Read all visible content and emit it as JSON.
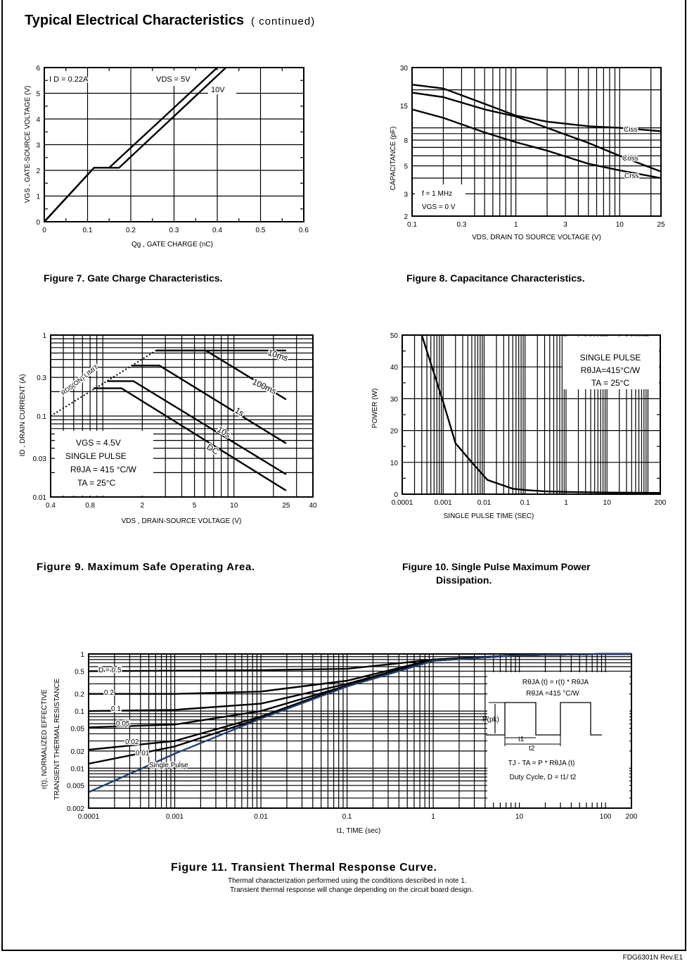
{
  "page": {
    "title": "Typical Electrical Characteristics",
    "title_suffix": "( continued)",
    "footer": "FDG6301N Rev.E1",
    "notes": [
      "Thermal characterization performed using the conditions described in note 1.",
      "Transient thermal response will change depending on the circuit board design."
    ]
  },
  "chart_data": [
    {
      "type": "line",
      "caption": "Figure 7. Gate Charge Characteristics.",
      "xlabel": "Qg , GATE CHARGE (nC)",
      "ylabel": "VGS , GATE-SOURCE VOLTAGE (V)",
      "xscale": "linear",
      "yscale": "linear",
      "xlim": [
        0,
        0.6
      ],
      "ylim": [
        0,
        6
      ],
      "xticks": [
        "0",
        "0.1",
        "0.2",
        "0.3",
        "0.4",
        "0.5",
        "0.6"
      ],
      "yticks": [
        "0",
        "1",
        "2",
        "3",
        "4",
        "5",
        "6"
      ],
      "grid": true,
      "annotations": [
        "I D = 0.22A",
        "VDS = 5V",
        "10V"
      ],
      "series": [
        {
          "name": "VDS = 5V",
          "x": [
            0,
            0.115,
            0.15,
            0.4
          ],
          "y": [
            0,
            2.1,
            2.1,
            6
          ]
        },
        {
          "name": "10V",
          "x": [
            0,
            0.115,
            0.173,
            0.42
          ],
          "y": [
            0,
            2.1,
            2.1,
            6
          ]
        }
      ]
    },
    {
      "type": "line",
      "caption": "Figure 8. Capacitance Characteristics.",
      "xlabel": "VDS, DRAIN TO SOURCE VOLTAGE (V)",
      "ylabel": "CAPACITANCE (pF)",
      "xscale": "log",
      "yscale": "log",
      "xlim": [
        0.1,
        25
      ],
      "ylim": [
        2,
        30
      ],
      "xticks": [
        "0.1",
        "0.3",
        "1",
        "3",
        "10",
        "25"
      ],
      "yticks": [
        "2",
        "3",
        "5",
        "8",
        "15",
        "30"
      ],
      "grid": true,
      "annotations": [
        "f = 1 MHz",
        "VGS = 0 V"
      ],
      "series": [
        {
          "name": "Ciss",
          "x": [
            0.1,
            0.2,
            0.5,
            1,
            2,
            5,
            10,
            25
          ],
          "y": [
            22,
            20.5,
            15.5,
            12.5,
            11.2,
            10.3,
            10,
            9.4
          ]
        },
        {
          "name": "Coss",
          "x": [
            0.1,
            0.2,
            0.5,
            1,
            2,
            5,
            10,
            25
          ],
          "y": [
            19,
            17.5,
            14,
            12.3,
            10,
            7.6,
            6,
            4.5
          ]
        },
        {
          "name": "Crss",
          "x": [
            0.1,
            0.2,
            0.5,
            1,
            2,
            5,
            10,
            25
          ],
          "y": [
            14,
            12,
            9.2,
            7.7,
            6.6,
            5.2,
            4.6,
            4
          ]
        }
      ]
    },
    {
      "type": "line",
      "caption": "Figure 9. Maximum Safe Operating Area.",
      "xlabel": "VDS , DRAIN-SOURCE VOLTAGE (V)",
      "ylabel": "ID , DRAIN CURRENT (A)",
      "xscale": "log",
      "yscale": "log",
      "xlim": [
        0.4,
        40
      ],
      "ylim": [
        0.01,
        1
      ],
      "xticks": [
        "0.4",
        "0.8",
        "2",
        "5",
        "10",
        "25",
        "40"
      ],
      "yticks": [
        "0.01",
        "0.03",
        "0.1",
        "0.3",
        "1"
      ],
      "grid": true,
      "annotations": [
        "VGS = 4.5V",
        "SINGLE PULSE",
        "RθJA = 415 °C/W",
        "TA = 25°C"
      ],
      "series": [
        {
          "name": "RDS(ON) LIMIT",
          "style": "dotted",
          "x": [
            0.4,
            2.55
          ],
          "y": [
            0.1,
            0.645
          ]
        },
        {
          "name": "10ms",
          "x": [
            2.55,
            25
          ],
          "y": [
            0.645,
            0.645
          ]
        },
        {
          "name": "100ms",
          "x": [
            2.55,
            6.1,
            25
          ],
          "y": [
            0.645,
            0.645,
            0.16
          ]
        },
        {
          "name": "1s",
          "x": [
            1.66,
            2.7,
            25
          ],
          "y": [
            0.42,
            0.42,
            0.046
          ]
        },
        {
          "name": "10s",
          "x": [
            1.08,
            1.71,
            25
          ],
          "y": [
            0.27,
            0.27,
            0.019
          ]
        },
        {
          "name": "DC",
          "x": [
            0.85,
            1.39,
            25
          ],
          "y": [
            0.22,
            0.22,
            0.012
          ]
        }
      ]
    },
    {
      "type": "line",
      "caption": "Figure 10. Single Pulse Maximum Power",
      "caption_line2": "Dissipation.",
      "xlabel": "SINGLE PULSE TIME (SEC)",
      "ylabel": "POWER (W)",
      "xscale": "log",
      "yscale": "linear",
      "xlim": [
        0.0001,
        200
      ],
      "ylim": [
        0,
        50
      ],
      "xticks": [
        "0.0001",
        "0.001",
        "0.01",
        "0.1",
        "1",
        "10",
        "200"
      ],
      "yticks": [
        "0",
        "10",
        "20",
        "30",
        "40",
        "50"
      ],
      "grid": true,
      "annotations": [
        "SINGLE PULSE",
        "RθJA=415°C/W",
        "TA = 25°C"
      ],
      "series": [
        {
          "x": [
            0.0003,
            0.001,
            0.002,
            0.005,
            0.012,
            0.05,
            0.1,
            0.3,
            1,
            10,
            200
          ],
          "y": [
            50,
            29,
            16,
            10,
            4.5,
            1.7,
            1.3,
            0.9,
            0.7,
            0.5,
            0.4
          ]
        }
      ]
    },
    {
      "type": "line",
      "caption": "Figure 11. Transient Thermal Response Curve.",
      "xlabel": "t1, TIME (sec)",
      "ylabel": "r(t), NORMALIZED EFFECTIVE",
      "ylabel2": "TRANSIENT THERMAL RESISTANCE",
      "xscale": "log",
      "yscale": "log",
      "xlim": [
        0.0001,
        200
      ],
      "ylim": [
        0.002,
        1
      ],
      "xticks": [
        "0.0001",
        "0.001",
        "0.01",
        "0.1",
        "1",
        "10",
        "100",
        "200"
      ],
      "yticks": [
        "0.002",
        "0.005",
        "0.01",
        "0.02",
        "0.05",
        "0.1",
        "0.2",
        "0.5",
        "1"
      ],
      "grid": true,
      "annotations": [
        "RθJA (t) = r(t) * RθJA",
        "RθJA =415 °C/W",
        "P(pk)",
        "t1",
        "t2",
        "TJ - TA = P * RθJA (t)",
        "Duty Cycle, D = t1/ t2"
      ],
      "series": [
        {
          "name": "D = 0.5",
          "x": [
            0.0001,
            0.01,
            0.1,
            1,
            10,
            100,
            200
          ],
          "y": [
            0.5,
            0.52,
            0.55,
            0.8,
            0.95,
            1,
            1
          ]
        },
        {
          "name": "0.2",
          "x": [
            0.0001,
            0.001,
            0.01,
            0.1,
            1,
            10,
            100,
            200
          ],
          "y": [
            0.2,
            0.2,
            0.22,
            0.34,
            0.8,
            0.95,
            1,
            1
          ]
        },
        {
          "name": "0.1",
          "x": [
            0.0001,
            0.001,
            0.01,
            0.1,
            1,
            10,
            100,
            200
          ],
          "y": [
            0.1,
            0.105,
            0.135,
            0.3,
            0.78,
            0.95,
            1,
            1
          ]
        },
        {
          "name": "0.05",
          "x": [
            0.0001,
            0.001,
            0.01,
            0.1,
            1,
            10,
            100,
            200
          ],
          "y": [
            0.052,
            0.058,
            0.1,
            0.28,
            0.77,
            0.95,
            1,
            1
          ]
        },
        {
          "name": "0.02",
          "x": [
            0.0001,
            0.001,
            0.01,
            0.1,
            1,
            10,
            100,
            200
          ],
          "y": [
            0.021,
            0.03,
            0.08,
            0.28,
            0.76,
            0.95,
            1,
            1
          ]
        },
        {
          "name": "0.01",
          "x": [
            0.0001,
            0.001,
            0.01,
            0.1,
            1,
            10,
            100,
            200
          ],
          "y": [
            0.012,
            0.024,
            0.075,
            0.27,
            0.76,
            0.95,
            1,
            1
          ]
        },
        {
          "name": "Single Pulse",
          "color": "#1f3f73",
          "x": [
            0.0001,
            0.001,
            0.01,
            0.1,
            1,
            10,
            100,
            200
          ],
          "y": [
            0.0038,
            0.018,
            0.074,
            0.27,
            0.76,
            0.95,
            1,
            1
          ]
        }
      ]
    }
  ]
}
